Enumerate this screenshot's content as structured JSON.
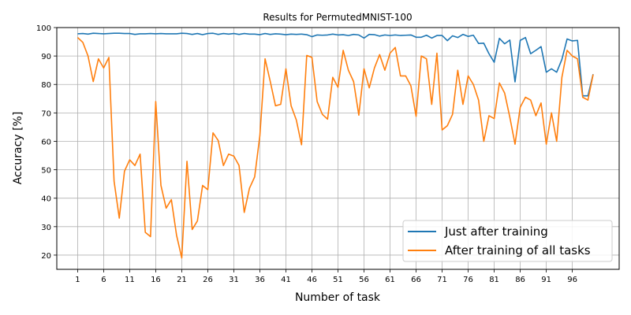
{
  "chart_data": {
    "type": "line",
    "title": "Results for PermutedMNIST-100",
    "xlabel": "Number of task",
    "ylabel": "Accuracy [%]",
    "xlim": [
      -3,
      105
    ],
    "ylim": [
      15,
      100
    ],
    "xticks": [
      1,
      6,
      11,
      16,
      21,
      26,
      31,
      36,
      41,
      46,
      51,
      56,
      61,
      66,
      71,
      76,
      81,
      86,
      91,
      96
    ],
    "yticks": [
      20,
      30,
      40,
      50,
      60,
      70,
      80,
      90,
      100
    ],
    "grid": true,
    "legend_position": "lower-right",
    "x": [
      1,
      2,
      3,
      4,
      5,
      6,
      7,
      8,
      9,
      10,
      11,
      12,
      13,
      14,
      15,
      16,
      17,
      18,
      19,
      20,
      21,
      22,
      23,
      24,
      25,
      26,
      27,
      28,
      29,
      30,
      31,
      32,
      33,
      34,
      35,
      36,
      37,
      38,
      39,
      40,
      41,
      42,
      43,
      44,
      45,
      46,
      47,
      48,
      49,
      50,
      51,
      52,
      53,
      54,
      55,
      56,
      57,
      58,
      59,
      60,
      61,
      62,
      63,
      64,
      65,
      66,
      67,
      68,
      69,
      70,
      71,
      72,
      73,
      74,
      75,
      76,
      77,
      78,
      79,
      80,
      81,
      82,
      83,
      84,
      85,
      86,
      87,
      88,
      89,
      90,
      91,
      92,
      93,
      94,
      95,
      96,
      97,
      98,
      99,
      100
    ],
    "series": [
      {
        "name": "Just after training",
        "color": "#1f77b4",
        "values": [
          97.8,
          97.9,
          97.7,
          98.0,
          97.9,
          97.8,
          97.9,
          98.0,
          98.0,
          97.9,
          97.9,
          97.6,
          97.8,
          97.8,
          97.9,
          97.8,
          97.9,
          97.8,
          97.8,
          97.8,
          98.0,
          97.9,
          97.6,
          97.9,
          97.5,
          97.9,
          98.0,
          97.6,
          97.9,
          97.7,
          97.9,
          97.6,
          97.9,
          97.7,
          97.7,
          97.5,
          97.9,
          97.6,
          97.8,
          97.7,
          97.5,
          97.7,
          97.6,
          97.7,
          97.5,
          96.8,
          97.4,
          97.3,
          97.4,
          97.7,
          97.4,
          97.5,
          97.2,
          97.6,
          97.4,
          96.3,
          97.6,
          97.5,
          97.0,
          97.4,
          97.2,
          97.4,
          97.2,
          97.3,
          97.4,
          96.6,
          96.6,
          97.3,
          96.3,
          97.2,
          97.2,
          95.4,
          97.1,
          96.5,
          97.6,
          96.9,
          97.3,
          94.4,
          94.5,
          90.8,
          87.8,
          96.2,
          94.3,
          95.6,
          80.9,
          95.5,
          96.5,
          90.8,
          92.0,
          93.3,
          84.3,
          85.5,
          84.3,
          88.8,
          96.0,
          95.3,
          95.5,
          76.0,
          76.0,
          83.6
        ]
      },
      {
        "name": "After training of all tasks",
        "color": "#ff7f0e",
        "values": [
          96.5,
          94.8,
          90.0,
          81.0,
          89.0,
          85.8,
          89.5,
          46.0,
          33.0,
          49.5,
          53.5,
          51.5,
          55.5,
          28.0,
          26.5,
          74.0,
          44.5,
          36.5,
          39.5,
          27.0,
          19.0,
          53.0,
          29.0,
          32.0,
          44.5,
          43.0,
          63.0,
          60.3,
          51.5,
          55.5,
          54.8,
          51.5,
          35.0,
          43.5,
          47.5,
          62.0,
          89.0,
          81.0,
          72.5,
          73.0,
          85.5,
          72.5,
          67.5,
          58.8,
          90.2,
          89.5,
          74.0,
          69.5,
          67.8,
          82.5,
          79.0,
          92.0,
          85.0,
          81.0,
          69.2,
          85.5,
          78.8,
          85.8,
          90.5,
          85.0,
          91.0,
          93.0,
          83.0,
          83.0,
          79.5,
          68.8,
          90.0,
          89.0,
          73.0,
          91.0,
          64.0,
          65.5,
          69.5,
          85.0,
          73.0,
          83.0,
          80.0,
          74.5,
          60.0,
          69.0,
          68.0,
          80.5,
          77.0,
          68.5,
          59.0,
          72.0,
          75.5,
          74.5,
          69.0,
          73.5,
          59.0,
          70.0,
          60.0,
          82.5,
          92.0,
          90.0,
          89.0,
          75.5,
          74.5,
          83.5
        ]
      }
    ]
  }
}
